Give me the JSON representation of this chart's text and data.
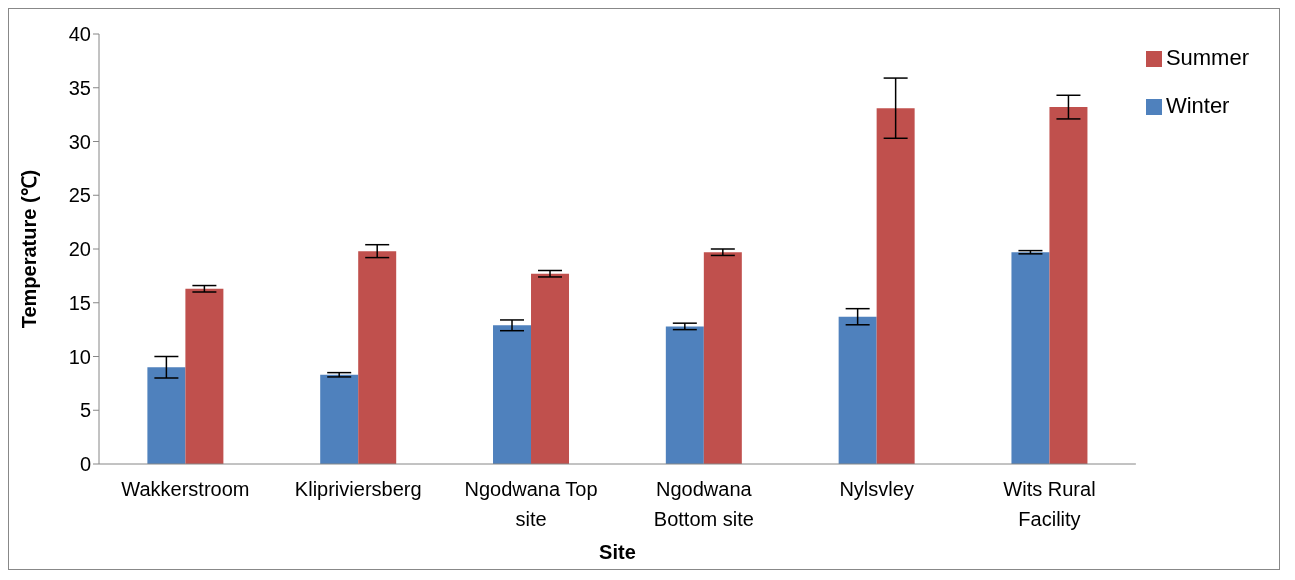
{
  "chart_data": {
    "type": "bar",
    "xlabel": "Site",
    "ylabel": "Temperature  (℃)",
    "categories": [
      "Wakkerstroom",
      "Klipriviersberg",
      "Ngodwana Top site",
      "Ngodwana Bottom site",
      "Nylsvley",
      "Wits Rural Facility"
    ],
    "series": [
      {
        "name": "Winter",
        "color": "#4f81bd",
        "values": [
          9.0,
          8.3,
          12.9,
          12.8,
          13.7,
          19.7
        ],
        "errors": [
          1.0,
          0.2,
          0.5,
          0.3,
          0.75,
          0.15
        ]
      },
      {
        "name": "Summer",
        "color": "#c0504d",
        "values": [
          16.3,
          19.8,
          17.7,
          19.7,
          33.1,
          33.2
        ],
        "errors": [
          0.3,
          0.6,
          0.3,
          0.3,
          2.8,
          1.1
        ]
      }
    ],
    "ylim": [
      0,
      40
    ],
    "yticks": [
      0,
      5,
      10,
      15,
      20,
      25,
      30,
      35,
      40
    ],
    "grid": false,
    "legend": "right"
  }
}
